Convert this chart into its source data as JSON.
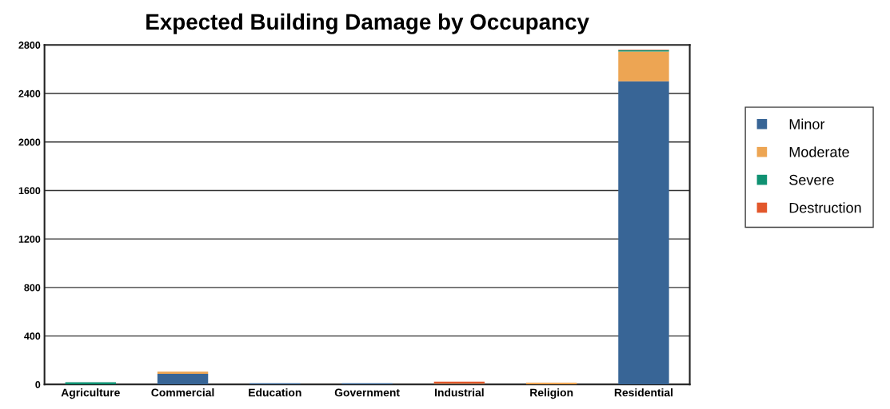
{
  "chart_data": {
    "type": "bar",
    "title": "Expected Building Damage by Occupancy",
    "categories": [
      "Agriculture",
      "Commercial",
      "Education",
      "Government",
      "Industrial",
      "Religion",
      "Residential"
    ],
    "stacked": true,
    "series": [
      {
        "name": "Minor",
        "color": "#386596",
        "values": [
          0,
          87,
          10,
          10,
          5,
          0,
          2500
        ]
      },
      {
        "name": "Moderate",
        "color": "#eda553",
        "values": [
          0,
          18,
          0,
          0,
          3,
          15,
          246
        ]
      },
      {
        "name": "Severe",
        "color": "#0f9172",
        "values": [
          18,
          0,
          0,
          0,
          0,
          0,
          12
        ]
      },
      {
        "name": "Destruction",
        "color": "#e2572b",
        "values": [
          0,
          0,
          0,
          0,
          15,
          0,
          3
        ]
      }
    ],
    "ylim": [
      0,
      2800
    ],
    "yticks": [
      0,
      400,
      800,
      1200,
      1600,
      2000,
      2400,
      2800
    ],
    "grid": "y",
    "legend": "right"
  }
}
